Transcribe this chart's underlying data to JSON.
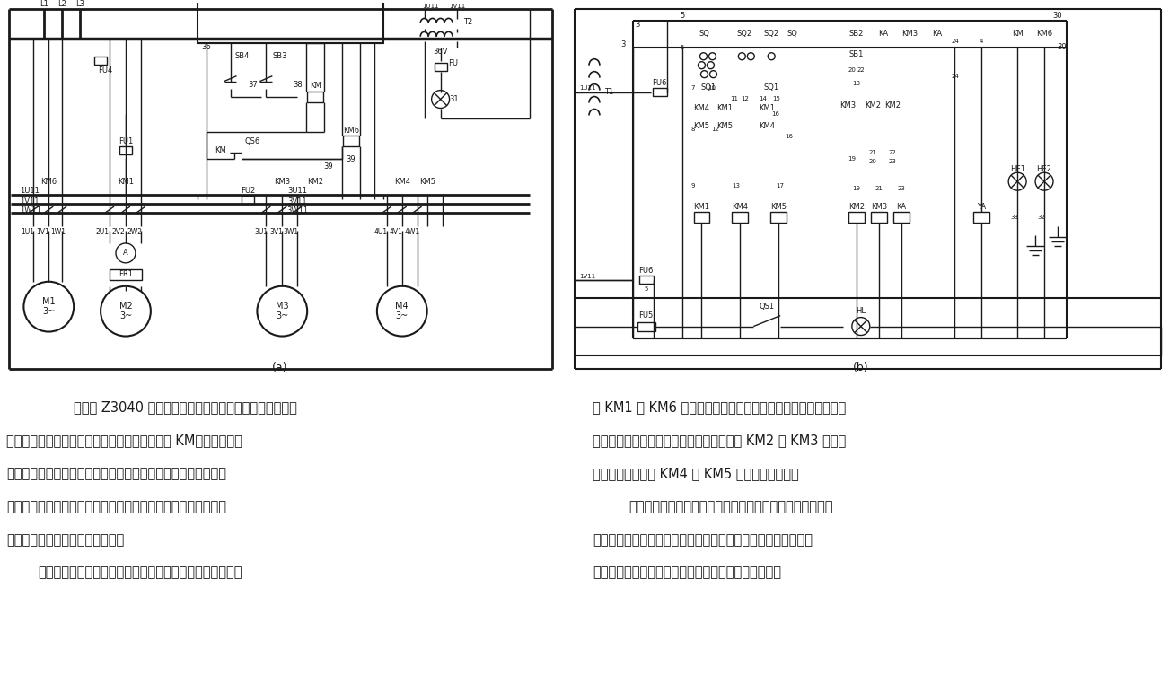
{
  "bg_color": "#ffffff",
  "line_color": "#1a1a1a",
  "text_left_para1": "所示是 Z3040 型摇臂钒射机电气原理图（改进），电路中",
  "text_left_para2": "电源开关不用一般的手动开关，而是采用接触器 KM，这是由于本",
  "text_left_para3": "机岚的主轴旋转和摇臂升降不用按鈕操作而采用了不自动复位的",
  "text_left_para4": "开关操作。用按鈕和接触器来代替一般的电源开关，就可以具有",
  "text_left_para5": "零压保护和一定的欠压保护作用。",
  "text_left_para6": "主电动机和冷却泵电动机都只需要单方向旋转，所以用接触",
  "text_right_para1": "器 KM1 和 KM6 分别控制。立柱夹紧电动机和摇臂升降电动机都",
  "text_right_para2": "需要正、反转，所以各用两只接触器控制， KM2 和 KM3 控制立",
  "text_right_para3": "柱的夹紧和松开， KM4 和 KM5 控制摇臂的升降。",
  "text_right_para4": "机岚安装时，应该注意相序。控制回路包括电源接触器和冷",
  "text_right_para5": "却泵的控制，主轴电动机和摇臂升降电动机的控制，摇臂升降和",
  "text_right_para6": "夹紧工作的自动循环控制，立柱和主轴筱的夹紧控制。",
  "label_a": "(a)",
  "label_b": "(b)"
}
